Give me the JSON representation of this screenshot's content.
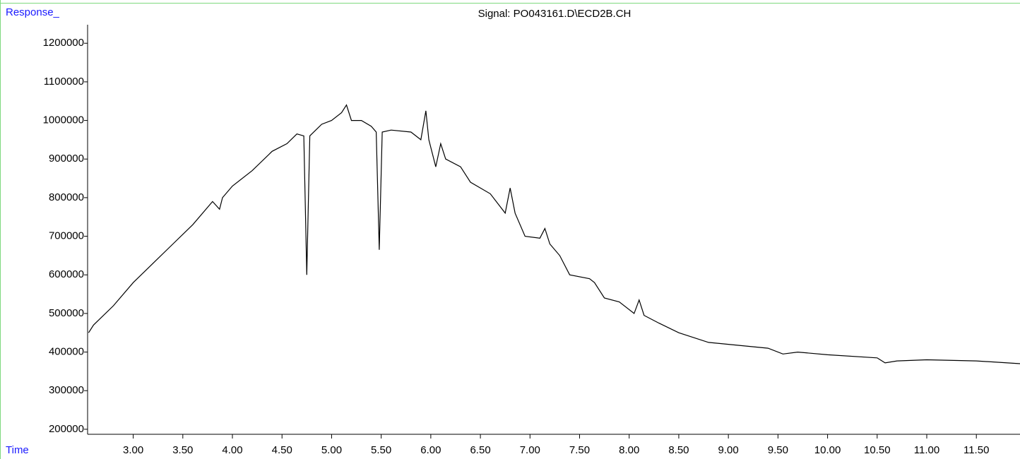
{
  "chart_data": {
    "type": "line",
    "title": "Signal: PO043161.D\\ECD2B.CH",
    "y_label": "Response_",
    "x_label": "Time",
    "color": "#000000",
    "x": [
      2.55,
      2.6,
      2.8,
      3.0,
      3.2,
      3.4,
      3.6,
      3.8,
      3.87,
      3.9,
      4.0,
      4.2,
      4.4,
      4.55,
      4.65,
      4.72,
      4.75,
      4.78,
      4.9,
      5.0,
      5.1,
      5.15,
      5.2,
      5.3,
      5.4,
      5.45,
      5.48,
      5.51,
      5.6,
      5.8,
      5.9,
      5.95,
      5.98,
      6.05,
      6.1,
      6.15,
      6.3,
      6.4,
      6.6,
      6.75,
      6.8,
      6.85,
      6.95,
      7.1,
      7.15,
      7.2,
      7.3,
      7.4,
      7.6,
      7.65,
      7.75,
      7.9,
      8.05,
      8.1,
      8.15,
      8.3,
      8.5,
      8.8,
      9.0,
      9.4,
      9.55,
      9.7,
      10.0,
      10.5,
      10.58,
      10.7,
      11.0,
      11.5,
      11.94
    ],
    "values": [
      450000,
      470000,
      520000,
      580000,
      630000,
      680000,
      730000,
      790000,
      770000,
      800000,
      830000,
      870000,
      920000,
      940000,
      965000,
      960000,
      600000,
      960000,
      990000,
      1000000,
      1020000,
      1040000,
      1000000,
      1000000,
      985000,
      970000,
      665000,
      970000,
      975000,
      970000,
      950000,
      1025000,
      950000,
      880000,
      940000,
      900000,
      880000,
      840000,
      810000,
      760000,
      825000,
      760000,
      700000,
      695000,
      720000,
      680000,
      650000,
      600000,
      590000,
      580000,
      540000,
      530000,
      500000,
      535000,
      495000,
      475000,
      450000,
      425000,
      420000,
      410000,
      395000,
      400000,
      393000,
      385000,
      372000,
      377000,
      380000,
      377000,
      370000
    ],
    "xlim": [
      2.54,
      11.94
    ],
    "ylim": [
      187000,
      1248000
    ],
    "xticks": [
      {
        "value": 3.0,
        "label": "3.00"
      },
      {
        "value": 3.5,
        "label": "3.50"
      },
      {
        "value": 4.0,
        "label": "4.00"
      },
      {
        "value": 4.5,
        "label": "4.50"
      },
      {
        "value": 5.0,
        "label": "5.00"
      },
      {
        "value": 5.5,
        "label": "5.50"
      },
      {
        "value": 6.0,
        "label": "6.00"
      },
      {
        "value": 6.5,
        "label": "6.50"
      },
      {
        "value": 7.0,
        "label": "7.00"
      },
      {
        "value": 7.5,
        "label": "7.50"
      },
      {
        "value": 8.0,
        "label": "8.00"
      },
      {
        "value": 8.5,
        "label": "8.50"
      },
      {
        "value": 9.0,
        "label": "9.00"
      },
      {
        "value": 9.5,
        "label": "9.50"
      },
      {
        "value": 10.0,
        "label": "10.00"
      },
      {
        "value": 10.5,
        "label": "10.50"
      },
      {
        "value": 11.0,
        "label": "11.00"
      },
      {
        "value": 11.5,
        "label": "11.50"
      }
    ],
    "yticks": [
      200000,
      300000,
      400000,
      500000,
      600000,
      700000,
      800000,
      900000,
      1000000,
      1100000,
      1200000
    ]
  }
}
